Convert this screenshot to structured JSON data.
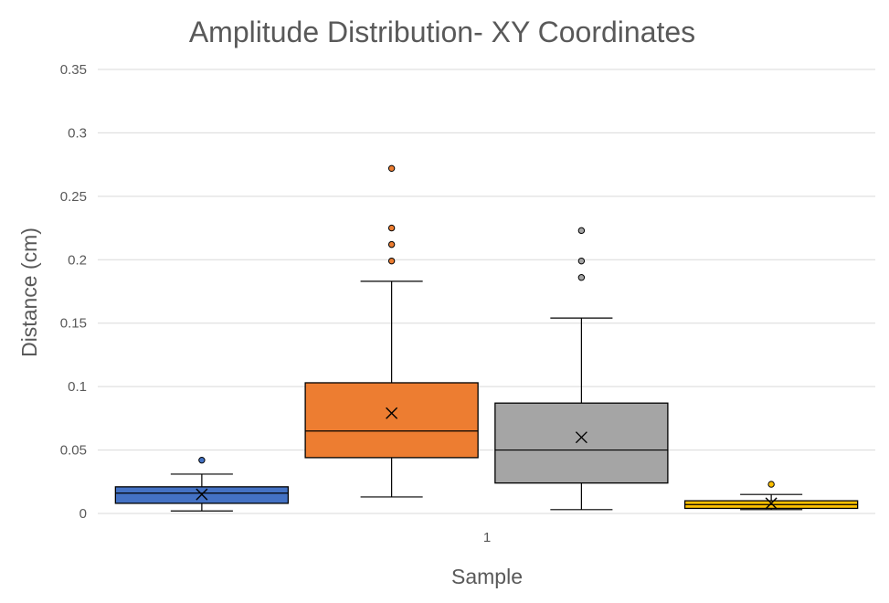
{
  "chart_data": {
    "type": "box",
    "title": "Amplitude Distribution- XY Coordinates",
    "xlabel": "Sample",
    "ylabel": "Distance (cm)",
    "categories": [
      "1"
    ],
    "ylim": [
      0,
      0.35
    ],
    "yticks": [
      "0",
      "0.05",
      "0.1",
      "0.15",
      "0.2",
      "0.25",
      "0.3",
      "0.35"
    ],
    "grid": true,
    "legend": "none",
    "series": [
      {
        "color": "#4472c4",
        "whisker_low": 0.002,
        "q1": 0.008,
        "median": 0.016,
        "q3": 0.021,
        "whisker_high": 0.031,
        "mean": 0.015,
        "outliers": [
          0.042
        ]
      },
      {
        "color": "#ed7d31",
        "whisker_low": 0.013,
        "q1": 0.044,
        "median": 0.065,
        "q3": 0.103,
        "whisker_high": 0.183,
        "mean": 0.079,
        "outliers": [
          0.199,
          0.212,
          0.225,
          0.272
        ]
      },
      {
        "color": "#a5a5a5",
        "whisker_low": 0.003,
        "q1": 0.024,
        "median": 0.05,
        "q3": 0.087,
        "whisker_high": 0.154,
        "mean": 0.06,
        "outliers": [
          0.186,
          0.199,
          0.223
        ]
      },
      {
        "color": "#ffc000",
        "whisker_low": 0.003,
        "q1": 0.004,
        "median": 0.007,
        "q3": 0.01,
        "whisker_high": 0.015,
        "mean": 0.008,
        "outliers": [
          0.023
        ]
      }
    ]
  }
}
